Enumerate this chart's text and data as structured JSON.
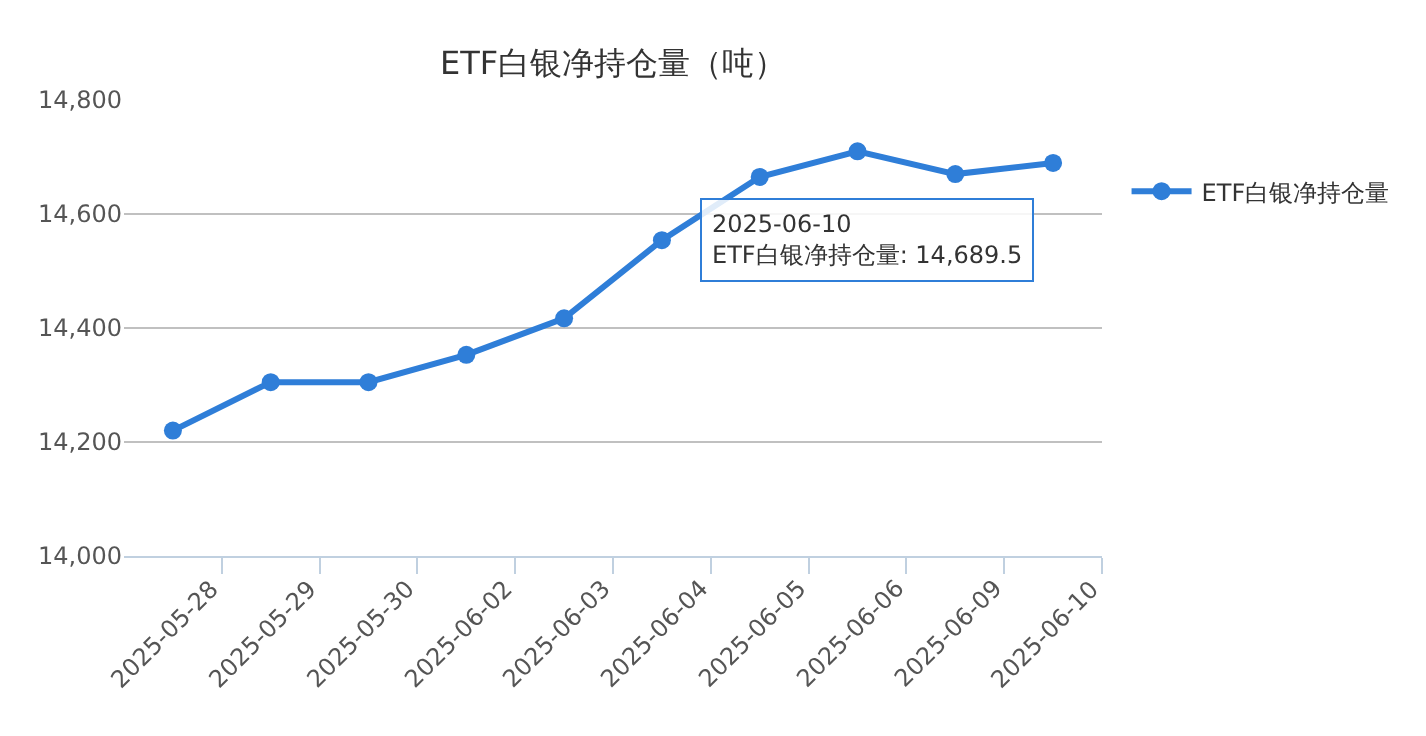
{
  "chart_data": {
    "type": "line",
    "title": "ETF白银净持仓量（吨）",
    "categories": [
      "2025-05-28",
      "2025-05-29",
      "2025-05-30",
      "2025-06-02",
      "2025-06-03",
      "2025-06-04",
      "2025-06-05",
      "2025-06-06",
      "2025-06-09",
      "2025-06-10"
    ],
    "series": [
      {
        "name": "ETF白银净持仓量",
        "color": "#2f7ed8",
        "values": [
          14220,
          14305,
          14305,
          14353,
          14417,
          14554,
          14665,
          14710,
          14670,
          14689.5
        ]
      }
    ],
    "ylim": [
      14000,
      14800
    ],
    "yticks": [
      {
        "value": 14000,
        "label": "14,000"
      },
      {
        "value": 14200,
        "label": "14,200"
      },
      {
        "value": 14400,
        "label": "14,400"
      },
      {
        "value": 14600,
        "label": "14,600"
      },
      {
        "value": 14800,
        "label": "14,800"
      }
    ],
    "grid": "y",
    "legend": "right",
    "marker": "circle",
    "line_style": "solid",
    "annotations": [
      {
        "text": "2025-06-10\nETF白银净持仓量: 14,689.5",
        "x": "2025-06-10",
        "y": 14689.5
      }
    ]
  }
}
